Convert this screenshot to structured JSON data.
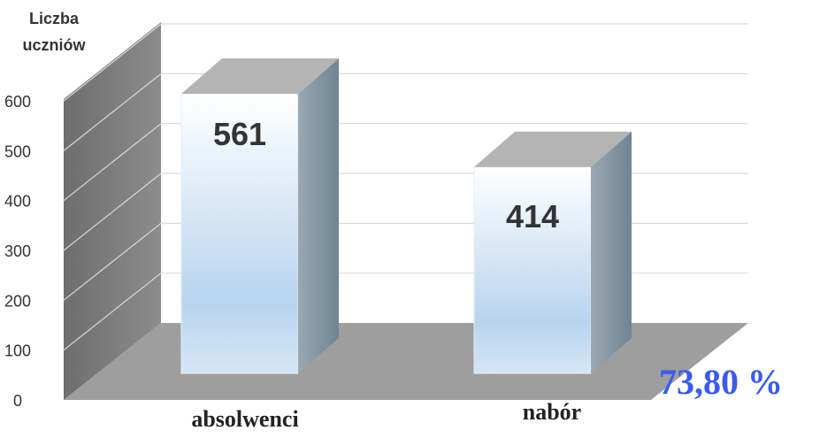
{
  "chart_data": {
    "type": "bar",
    "categories": [
      "absolwenci",
      "nabór"
    ],
    "values": [
      561,
      414
    ],
    "data_labels": [
      "561",
      "414"
    ],
    "ylabel": "Liczba uczniów",
    "xlabel": "",
    "ylim": [
      0,
      600
    ],
    "yticks": [
      "0",
      "100",
      "200",
      "300",
      "400",
      "500",
      "600"
    ],
    "grid": true,
    "annotation": "73,80 %",
    "colors": {
      "bar_front_top": "#ffffff",
      "bar_front_bottom": "#b8d4ee",
      "bar_side": "#7c8d9a",
      "bar_top": "#b4b4b4",
      "floor": "#9e9e9e",
      "wall": "#7f7f7f",
      "annotation": "#3a5bf0"
    }
  }
}
